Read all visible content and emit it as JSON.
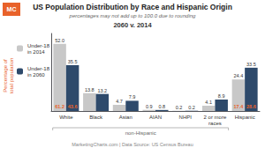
{
  "chart_data": {
    "type": "bar",
    "title": "US Population Distribution by Race and Hispanic Origin",
    "subtitle": "percentages may not add up to 100.0 due to rounding",
    "year_label": "2060 v. 2014",
    "logo": "MC",
    "footer": "MarketingCharts.com | Data Source: US Census Bureau",
    "ylabel": "Percentage of\ntotal population",
    "categories": [
      "White",
      "Black",
      "Asian",
      "AIAN",
      "NHPI",
      "2 or more\nraces",
      "Hispanic"
    ],
    "series": [
      {
        "name": "Under-18\nin 2014",
        "color": "#c8c8c8",
        "values": [
          52.0,
          13.8,
          4.7,
          0.9,
          0.2,
          4.1,
          24.4
        ],
        "value_labels": [
          "52.0",
          "13.8",
          "4.7",
          "0.9",
          "0.2",
          "4.1",
          "24.4"
        ],
        "bottom_labels": [
          61.2,
          null,
          null,
          null,
          null,
          null,
          17.4
        ]
      },
      {
        "name": "Under-18\nin 2060",
        "color": "#2e4a6b",
        "values": [
          35.5,
          13.2,
          7.9,
          0.8,
          0.2,
          8.9,
          33.5
        ],
        "value_labels": [
          "35.5",
          "13.2",
          "7.9",
          "0.8",
          "0.2",
          "8.9",
          "33.5"
        ],
        "bottom_labels": [
          43.6,
          null,
          null,
          null,
          null,
          null,
          28.6
        ]
      }
    ],
    "bracket": {
      "label": "non-Hispanic",
      "categories": [
        "White",
        "2 or more\nraces"
      ]
    },
    "ylim": [
      0,
      60
    ],
    "yticks": [],
    "tick_labels": "x",
    "grid": false,
    "legend": "upper left",
    "data_labels": true
  }
}
